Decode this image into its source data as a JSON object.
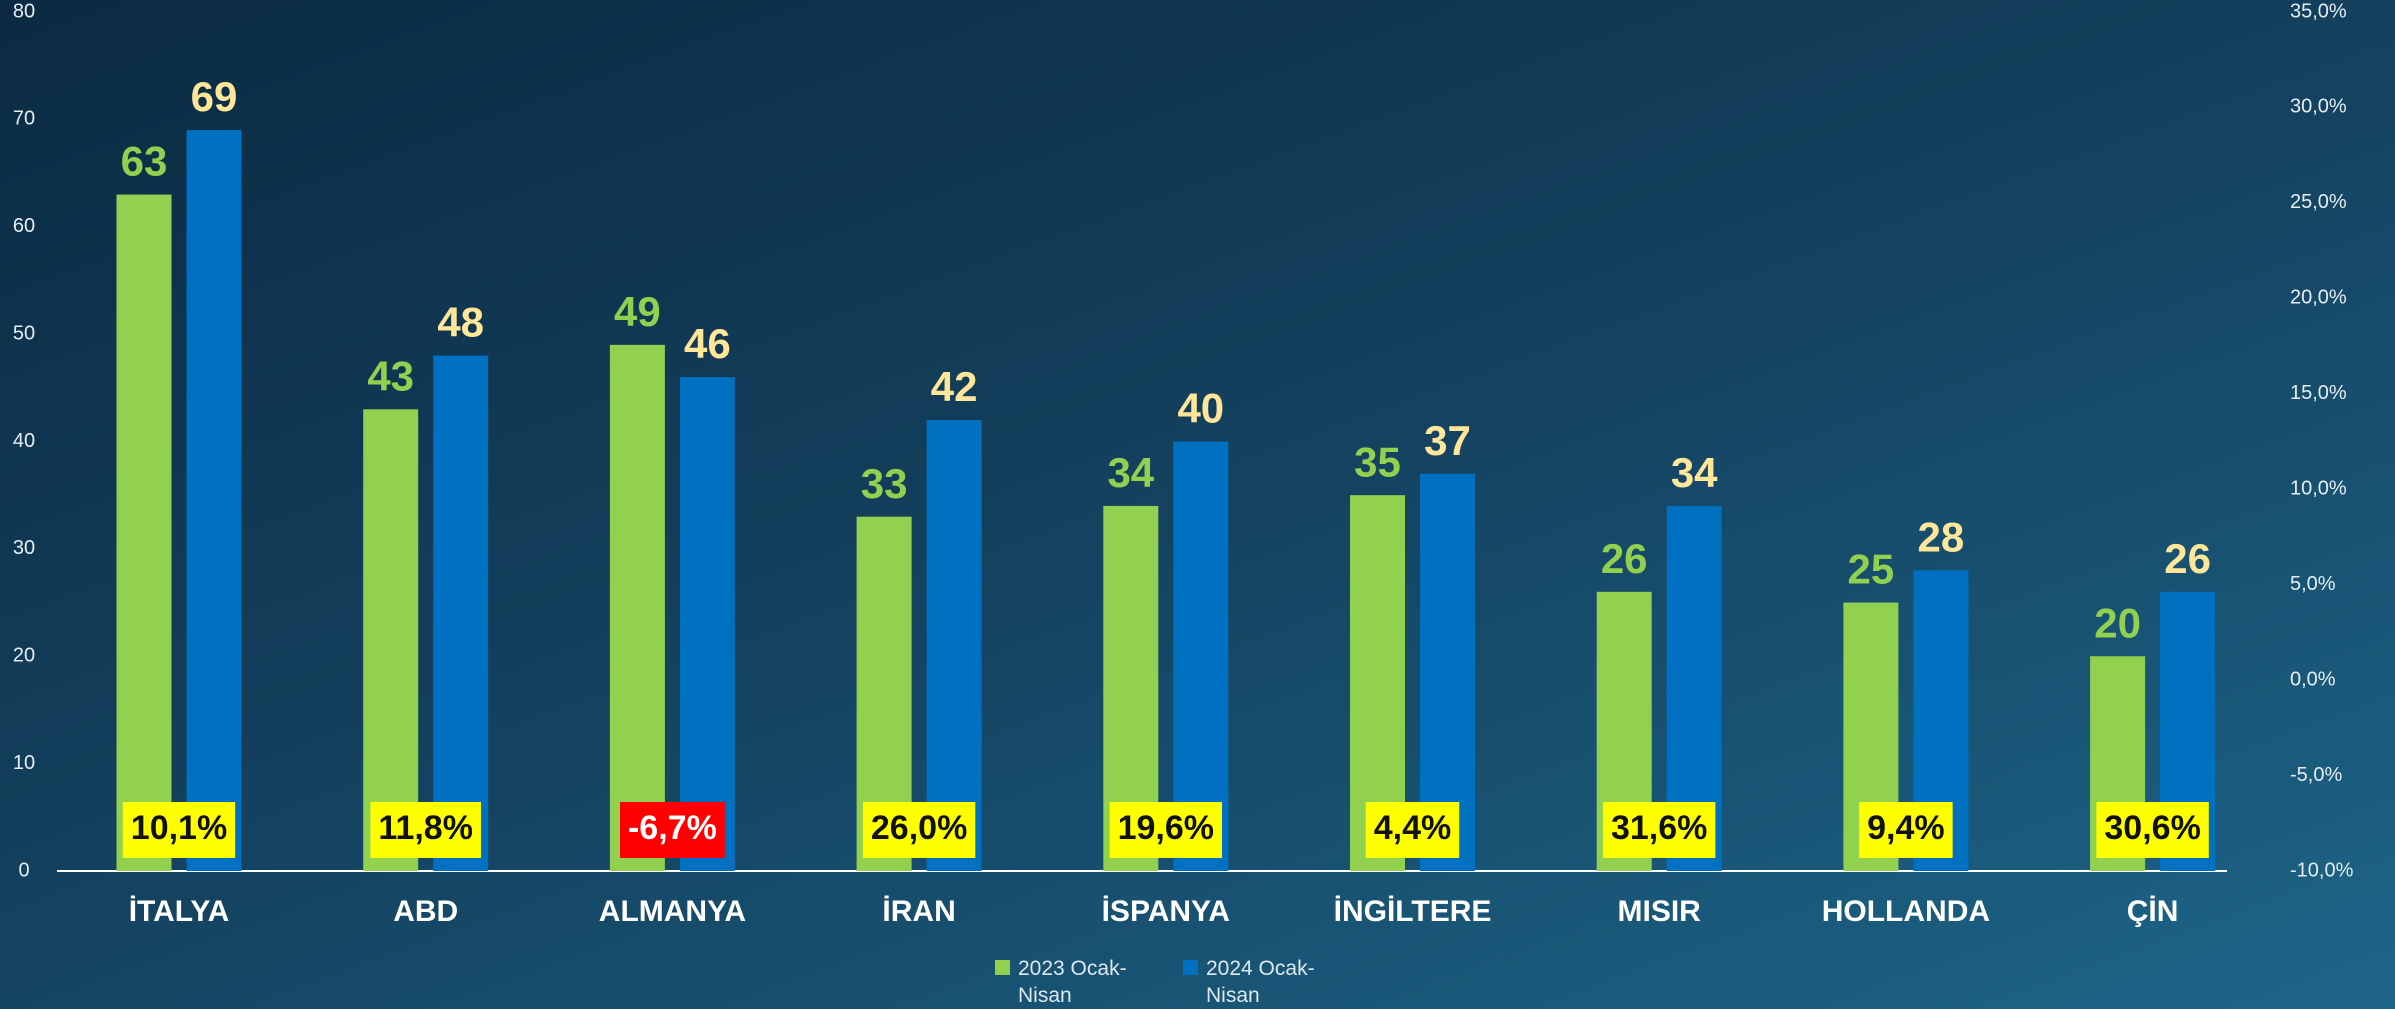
{
  "chart_data": {
    "type": "bar",
    "categories": [
      "İTALYA",
      "ABD",
      "ALMANYA",
      "İRAN",
      "İSPANYA",
      "İNGİLTERE",
      "MISIR",
      "HOLLANDA",
      "ÇİN"
    ],
    "series": [
      {
        "name": "2023 Ocak-Nisan",
        "color": "#92d050",
        "label_color": "#92d050",
        "values": [
          63,
          43,
          49,
          33,
          34,
          35,
          26,
          25,
          20
        ]
      },
      {
        "name": "2024 Ocak-Nisan",
        "color": "#0070c0",
        "label_color": "#ffe699",
        "values": [
          69,
          48,
          46,
          42,
          40,
          37,
          34,
          28,
          26
        ]
      }
    ],
    "changes": {
      "values": [
        10.1,
        11.8,
        -6.7,
        26.0,
        19.6,
        4.4,
        31.6,
        9.4,
        30.6
      ],
      "value_labels": [
        "10,1%",
        "11,8%",
        "-6,7%",
        "26,0%",
        "19,6%",
        "4,4%",
        "31,6%",
        "9,4%",
        "30,6%"
      ],
      "color": "#ffff00",
      "negative_color": "#ff0000"
    },
    "ylim": [
      0,
      80
    ],
    "yticks": [
      0,
      10,
      20,
      30,
      40,
      50,
      60,
      70,
      80
    ],
    "y2lim": [
      -10,
      35
    ],
    "y2ticks": [
      {
        "value": -10,
        "label": "-10,0%"
      },
      {
        "value": -5,
        "label": "-5,0%"
      },
      {
        "value": 0,
        "label": "0,0%"
      },
      {
        "value": 5,
        "label": "5,0%"
      },
      {
        "value": 10,
        "label": "10,0%"
      },
      {
        "value": 15,
        "label": "15,0%"
      },
      {
        "value": 20,
        "label": "20,0%"
      },
      {
        "value": 25,
        "label": "25,0%"
      },
      {
        "value": 30,
        "label": "30,0%"
      },
      {
        "value": 35,
        "label": "35,0%"
      }
    ],
    "grid": false,
    "legend": "bottom"
  }
}
